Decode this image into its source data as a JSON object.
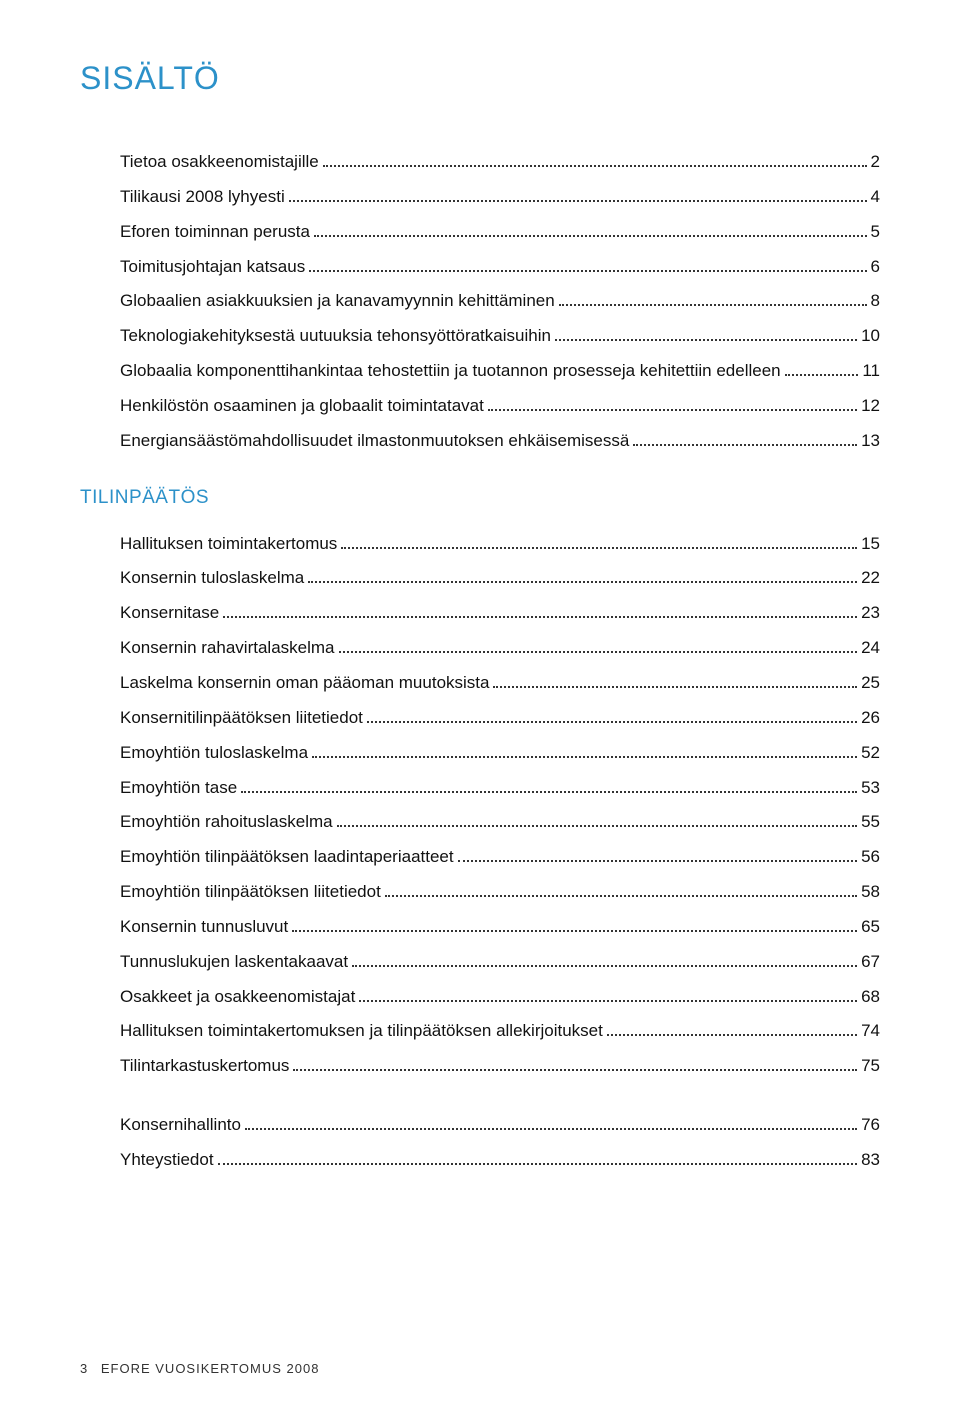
{
  "colors": {
    "title": "#2c91c9",
    "section": "#2c91c9",
    "text": "#111111",
    "footer": "#333333",
    "background": "#ffffff"
  },
  "typography": {
    "title_fontsize": 32,
    "section_fontsize": 19,
    "row_fontsize": 17,
    "footer_fontsize": 13,
    "font_family": "Arial, Helvetica, sans-serif"
  },
  "title": "SISÄLTÖ",
  "group1": {
    "entries": [
      {
        "label": "Tietoa osakkeenomistajille",
        "page": "2"
      },
      {
        "label": "Tilikausi 2008 lyhyesti",
        "page": "4"
      },
      {
        "label": "Eforen toiminnan perusta",
        "page": "5"
      },
      {
        "label": "Toimitusjohtajan katsaus",
        "page": "6"
      },
      {
        "label": "Globaalien asiakkuuksien ja kanavamyynnin kehittäminen",
        "page": "8"
      },
      {
        "label": "Teknologiakehityksestä uutuuksia tehonsyöttöratkaisuihin",
        "page": "10"
      },
      {
        "label": "Globaalia komponenttihankintaa tehostettiin ja tuotannon prosesseja kehitettiin edelleen",
        "page": "11"
      },
      {
        "label": "Henkilöstön osaaminen ja globaalit toimintatavat",
        "page": "12"
      },
      {
        "label": "Energiansäästömahdollisuudet ilmastonmuutoksen ehkäisemisessä",
        "page": "13"
      }
    ]
  },
  "section2_title": "TILINPÄÄTÖS",
  "group2": {
    "entries": [
      {
        "label": "Hallituksen toimintakertomus",
        "page": "15"
      },
      {
        "label": "Konsernin tuloslaskelma",
        "page": "22"
      },
      {
        "label": "Konsernitase",
        "page": "23"
      },
      {
        "label": "Konsernin rahavirtalaskelma",
        "page": "24"
      },
      {
        "label": "Laskelma konsernin oman pääoman muutoksista",
        "page": "25"
      },
      {
        "label": "Konsernitilinpäätöksen liitetiedot",
        "page": "26"
      },
      {
        "label": "Emoyhtiön tuloslaskelma",
        "page": "52"
      },
      {
        "label": "Emoyhtiön tase",
        "page": "53"
      },
      {
        "label": "Emoyhtiön rahoituslaskelma",
        "page": "55"
      },
      {
        "label": "Emoyhtiön tilinpäätöksen laadintaperiaatteet",
        "page": "56"
      },
      {
        "label": "Emoyhtiön tilinpäätöksen liitetiedot",
        "page": "58"
      },
      {
        "label": "Konsernin tunnusluvut",
        "page": "65"
      },
      {
        "label": "Tunnuslukujen laskentakaavat",
        "page": "67"
      },
      {
        "label": "Osakkeet ja osakkeenomistajat",
        "page": "68"
      },
      {
        "label": "Hallituksen toimintakertomuksen ja tilinpäätöksen allekirjoitukset",
        "page": "74"
      },
      {
        "label": "Tilintarkastuskertomus",
        "page": "75"
      }
    ]
  },
  "group3": {
    "entries": [
      {
        "label": "Konsernihallinto",
        "page": "76"
      },
      {
        "label": "Yhteystiedot",
        "page": "83"
      }
    ]
  },
  "footer": {
    "page_number": "3",
    "text": "EFORE VUOSIKERTOMUS 2008"
  }
}
